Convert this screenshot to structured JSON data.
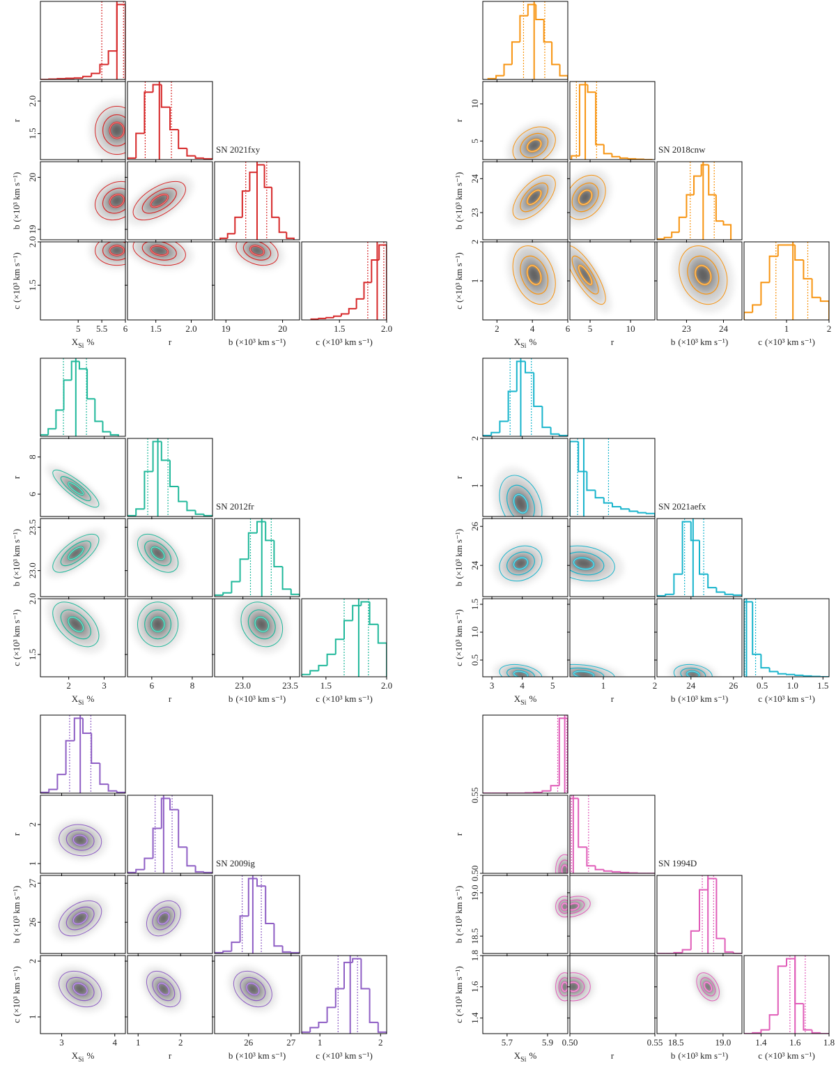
{
  "chart_data": [
    {
      "type": "corner",
      "name": "SN 2021fxy",
      "color": "#d62728",
      "params": [
        {
          "label": "X",
          "sub": "Si",
          "unit": "%",
          "lim": [
            4.2,
            6.0
          ],
          "ticks": [
            5,
            5.5,
            6
          ],
          "quantiles": [
            5.5,
            5.82,
            5.96
          ],
          "bins": [
            4.2,
            4.38,
            4.56,
            4.74,
            4.92,
            5.1,
            5.28,
            5.46,
            5.64,
            5.82,
            6.0
          ],
          "counts": [
            0,
            0.005,
            0.01,
            0.015,
            0.02,
            0.04,
            0.08,
            0.2,
            0.38,
            1
          ]
        },
        {
          "label": "r",
          "lim": [
            1.1,
            2.3
          ],
          "ticks": [
            1.5,
            {
              "value": 2,
              "label": "2.0"
            }
          ],
          "quantiles": [
            1.35,
            1.55,
            1.72
          ],
          "bins": [
            1.1,
            1.22,
            1.34,
            1.46,
            1.58,
            1.7,
            1.82,
            1.94,
            2.06,
            2.18,
            2.3
          ],
          "counts": [
            0.02,
            0.35,
            0.9,
            1,
            0.7,
            0.4,
            0.15,
            0.05,
            0.02,
            0.01
          ]
        },
        {
          "label": "b",
          "unit": "(×10³ km s⁻¹)",
          "lim": [
            18.8,
            20.3
          ],
          "ticks": [
            19,
            20
          ],
          "quantiles": [
            19.35,
            19.55,
            19.72
          ],
          "bins": [
            18.9,
            19.03,
            19.16,
            19.29,
            19.42,
            19.55,
            19.68,
            19.81,
            19.94,
            20.07,
            20.2
          ],
          "counts": [
            0.02,
            0.08,
            0.3,
            0.65,
            0.9,
            1,
            0.7,
            0.3,
            0.1,
            0.02
          ]
        },
        {
          "label": "c",
          "unit": "(×10³ km s⁻¹)",
          "lim": [
            1.1,
            2.0
          ],
          "ticks": [
            1.5,
            {
              "value": 2,
              "label": "2.0"
            }
          ],
          "quantiles": [
            1.8,
            1.9,
            1.97
          ],
          "bins": [
            1.2,
            1.28,
            1.36,
            1.44,
            1.52,
            1.6,
            1.68,
            1.76,
            1.84,
            1.92,
            2.0
          ],
          "counts": [
            0.01,
            0.02,
            0.03,
            0.05,
            0.08,
            0.15,
            0.28,
            0.5,
            0.8,
            1
          ]
        }
      ],
      "corr": [
        0,
        0.2,
        0.6,
        0,
        -0.3,
        -0.3
      ]
    },
    {
      "type": "corner",
      "name": "SN 2018cnw",
      "color": "#f7930f",
      "params": [
        {
          "label": "X",
          "sub": "Si",
          "unit": "%",
          "lim": [
            1.2,
            6.0
          ],
          "ticks": [
            2,
            4,
            6
          ],
          "quantiles": [
            3.5,
            4.1,
            4.7
          ],
          "bins": [
            1.5,
            1.95,
            2.4,
            2.85,
            3.3,
            3.75,
            4.2,
            4.65,
            5.1,
            5.55,
            6.0
          ],
          "counts": [
            0.01,
            0.05,
            0.2,
            0.5,
            0.85,
            1,
            0.8,
            0.5,
            0.2,
            0.05
          ]
        },
        {
          "label": "r",
          "lim": [
            2.5,
            13
          ],
          "ticks": [
            5,
            10
          ],
          "quantiles": [
            3.3,
            4.4,
            5.8
          ],
          "bins": [
            2.7,
            3.7,
            4.7,
            5.7,
            6.7,
            7.7,
            8.7,
            9.7,
            10.7,
            11.7,
            12.7
          ],
          "counts": [
            0.05,
            1,
            0.9,
            0.2,
            0.08,
            0.04,
            0.02,
            0.01,
            0.005,
            0
          ]
        },
        {
          "label": "b",
          "unit": "(×10³ km s⁻¹)",
          "lim": [
            22.2,
            24.5
          ],
          "ticks": [
            23,
            24
          ],
          "quantiles": [
            23.1,
            23.45,
            23.75
          ],
          "bins": [
            22.2,
            22.4,
            22.6,
            22.8,
            23.0,
            23.2,
            23.4,
            23.6,
            23.8,
            24.0,
            24.2
          ],
          "counts": [
            0.01,
            0.03,
            0.1,
            0.3,
            0.6,
            0.85,
            1,
            0.6,
            0.25,
            0.2
          ]
        },
        {
          "label": "c",
          "unit": "(×10³ km s⁻¹)",
          "lim": [
            0,
            2
          ],
          "ticks": [
            1,
            2
          ],
          "quantiles": [
            0.75,
            1.15,
            1.5
          ],
          "bins": [
            0,
            0.2,
            0.4,
            0.6,
            0.8,
            1.0,
            1.2,
            1.4,
            1.6,
            1.8,
            2.0
          ],
          "counts": [
            0.1,
            0.2,
            0.5,
            0.85,
            1,
            1,
            0.8,
            0.55,
            0.3,
            0.25
          ]
        }
      ],
      "corr": [
        0.3,
        0.6,
        0.3,
        -0.3,
        -0.8,
        -0.2
      ]
    },
    {
      "type": "corner",
      "name": "SN 2012fr",
      "color": "#1fb89a",
      "params": [
        {
          "label": "X",
          "sub": "Si",
          "unit": "%",
          "lim": [
            1.2,
            3.6
          ],
          "ticks": [
            2,
            3
          ],
          "quantiles": [
            1.85,
            2.2,
            2.5
          ],
          "bins": [
            1.2,
            1.42,
            1.64,
            1.86,
            2.08,
            2.3,
            2.52,
            2.74,
            2.96,
            3.18,
            3.4
          ],
          "counts": [
            0.02,
            0.1,
            0.35,
            0.75,
            1,
            0.9,
            0.5,
            0.2,
            0.06,
            0.02
          ]
        },
        {
          "label": "r",
          "lim": [
            4.8,
            9
          ],
          "ticks": [
            6,
            8
          ],
          "quantiles": [
            5.8,
            6.3,
            6.8
          ],
          "bins": [
            4.8,
            5.22,
            5.64,
            6.06,
            6.48,
            6.9,
            7.32,
            7.74,
            8.16,
            8.58,
            9.0
          ],
          "counts": [
            0.01,
            0.1,
            0.6,
            1,
            0.75,
            0.4,
            0.2,
            0.08,
            0.03,
            0.01
          ]
        },
        {
          "label": "b",
          "unit": "(×10³ km s⁻¹)",
          "lim": [
            22.7,
            23.6
          ],
          "ticks": [
            {
              "value": 23,
              "label": "23.0"
            },
            23.5
          ],
          "quantiles": [
            23.08,
            23.2,
            23.3
          ],
          "bins": [
            22.7,
            22.79,
            22.88,
            22.97,
            23.06,
            23.15,
            23.24,
            23.33,
            23.42,
            23.51,
            23.6
          ],
          "counts": [
            0.02,
            0.05,
            0.2,
            0.5,
            0.85,
            1,
            0.75,
            0.4,
            0.1,
            0.03
          ]
        },
        {
          "label": "c",
          "unit": "(×10³ km s⁻¹)",
          "lim": [
            1.3,
            2.0
          ],
          "ticks": [
            1.5,
            {
              "value": 2,
              "label": "2.0"
            }
          ],
          "quantiles": [
            1.65,
            1.77,
            1.85
          ],
          "bins": [
            1.3,
            1.37,
            1.44,
            1.51,
            1.58,
            1.65,
            1.72,
            1.79,
            1.86,
            1.93,
            2.0
          ],
          "counts": [
            0.03,
            0.08,
            0.15,
            0.3,
            0.5,
            0.75,
            0.95,
            1,
            0.7,
            0.45
          ]
        }
      ],
      "corr": [
        -0.85,
        0.7,
        -0.5,
        -0.5,
        0,
        -0.2
      ]
    },
    {
      "type": "corner",
      "name": "SN 2021aefx",
      "color": "#17b4cc",
      "params": [
        {
          "label": "X",
          "sub": "Si",
          "unit": "%",
          "lim": [
            2.7,
            5.5
          ],
          "ticks": [
            3,
            4,
            5
          ],
          "quantiles": [
            3.6,
            3.95,
            4.3
          ],
          "bins": [
            2.7,
            2.98,
            3.26,
            3.54,
            3.82,
            4.1,
            4.38,
            4.66,
            4.94,
            5.22,
            5.5
          ],
          "counts": [
            0.01,
            0.05,
            0.2,
            0.6,
            1,
            0.85,
            0.4,
            0.12,
            0.03,
            0.01
          ]
        },
        {
          "label": "r",
          "lim": [
            0.35,
            2.0
          ],
          "ticks": [
            1,
            2
          ],
          "quantiles": [
            0.5,
            0.62,
            1.1
          ],
          "bins": [
            0.35,
            0.515,
            0.68,
            0.845,
            1.01,
            1.175,
            1.34,
            1.505,
            1.67,
            1.835,
            2.0
          ],
          "counts": [
            1,
            0.6,
            0.35,
            0.25,
            0.18,
            0.13,
            0.1,
            0.07,
            0.05,
            0.04
          ]
        },
        {
          "label": "b",
          "unit": "(×10³ km s⁻¹)",
          "lim": [
            22.4,
            26.4
          ],
          "ticks": [
            24,
            26
          ],
          "quantiles": [
            23.7,
            24.1,
            24.6
          ],
          "bins": [
            22.4,
            22.8,
            23.2,
            23.6,
            24.0,
            24.4,
            24.8,
            25.2,
            25.6,
            26.0,
            26.4
          ],
          "counts": [
            0.01,
            0.03,
            0.3,
            1,
            0.75,
            0.3,
            0.12,
            0.06,
            0.03,
            0.02
          ]
        },
        {
          "label": "c",
          "unit": "(×10³ km s⁻¹)",
          "lim": [
            0.2,
            1.6
          ],
          "ticks": [
            0.5,
            {
              "value": 1,
              "label": "1.0"
            },
            1.5
          ],
          "quantiles": [
            0.21,
            0.24,
            0.39
          ],
          "bins": [
            0.2,
            0.34,
            0.48,
            0.62,
            0.76,
            0.9,
            1.04,
            1.18,
            1.32,
            1.46,
            1.6
          ],
          "counts": [
            1,
            0.3,
            0.12,
            0.07,
            0.04,
            0.03,
            0.02,
            0.01,
            0.005,
            0
          ]
        }
      ],
      "corr": [
        -0.3,
        0.2,
        -0.2,
        -0.3,
        -0.3,
        -0.2
      ]
    },
    {
      "type": "corner",
      "name": "SN 2009ig",
      "color": "#8e5ec4",
      "params": [
        {
          "label": "X",
          "sub": "Si",
          "unit": "%",
          "lim": [
            2.6,
            4.2
          ],
          "ticks": [
            3,
            4
          ],
          "quantiles": [
            3.15,
            3.35,
            3.55
          ],
          "bins": [
            2.6,
            2.76,
            2.92,
            3.08,
            3.24,
            3.4,
            3.56,
            3.72,
            3.88,
            4.04,
            4.2
          ],
          "counts": [
            0.01,
            0.05,
            0.25,
            0.7,
            1,
            0.8,
            0.4,
            0.12,
            0.03,
            0.01
          ]
        },
        {
          "label": "r",
          "lim": [
            0.75,
            2.75
          ],
          "ticks": [
            1,
            2
          ],
          "quantiles": [
            1.4,
            1.6,
            1.8
          ],
          "bins": [
            0.75,
            0.95,
            1.15,
            1.35,
            1.55,
            1.75,
            1.95,
            2.15,
            2.35,
            2.55,
            2.75
          ],
          "counts": [
            0.01,
            0.05,
            0.2,
            0.6,
            1,
            0.85,
            0.35,
            0.1,
            0.02,
            0.01
          ]
        },
        {
          "label": "b",
          "unit": "(×10³ km s⁻¹)",
          "lim": [
            25.2,
            27.2
          ],
          "ticks": [
            26,
            27
          ],
          "quantiles": [
            25.85,
            26.1,
            26.3
          ],
          "bins": [
            25.2,
            25.4,
            25.6,
            25.8,
            26.0,
            26.2,
            26.4,
            26.6,
            26.8,
            27.0,
            27.2
          ],
          "counts": [
            0.01,
            0.03,
            0.15,
            0.5,
            1,
            0.9,
            0.4,
            0.1,
            0.02,
            0.01
          ]
        },
        {
          "label": "c",
          "unit": "(×10³ km s⁻¹)",
          "lim": [
            0.7,
            2.1
          ],
          "ticks": [
            1,
            2
          ],
          "quantiles": [
            1.3,
            1.5,
            1.62
          ],
          "bins": [
            0.7,
            0.84,
            0.98,
            1.12,
            1.26,
            1.4,
            1.54,
            1.68,
            1.82,
            1.96,
            2.1
          ],
          "counts": [
            0.02,
            0.08,
            0.15,
            0.35,
            0.6,
            0.95,
            1,
            0.6,
            0.15,
            0.02
          ]
        }
      ],
      "corr": [
        -0.1,
        0.4,
        0.3,
        -0.3,
        -0.4,
        -0.3
      ]
    },
    {
      "type": "corner",
      "name": "SN 1994D",
      "color": "#e05cb8",
      "params": [
        {
          "label": "X",
          "sub": "Si",
          "unit": "%",
          "lim": [
            5.58,
            6.0
          ],
          "ticks": [
            5.7,
            5.9
          ],
          "quantiles": [
            5.95,
            5.985,
            5.995
          ],
          "bins": [
            5.58,
            5.622,
            5.664,
            5.706,
            5.748,
            5.79,
            5.832,
            5.874,
            5.916,
            5.958,
            6.0
          ],
          "counts": [
            0,
            0,
            0,
            0,
            0,
            0.005,
            0.01,
            0.03,
            0.1,
            1
          ]
        },
        {
          "label": "r",
          "lim": [
            0.5,
            0.55
          ],
          "ticks": [
            {
              "value": 0.5,
              "label": "0.50"
            },
            0.55
          ],
          "quantiles": [
            0.501,
            0.502,
            0.511
          ],
          "bins": [
            0.5,
            0.505,
            0.51,
            0.515,
            0.52,
            0.525,
            0.53,
            0.535,
            0.54,
            0.545,
            0.55
          ],
          "counts": [
            1,
            0.35,
            0.1,
            0.05,
            0.03,
            0.02,
            0.01,
            0.005,
            0,
            0
          ]
        },
        {
          "label": "b",
          "unit": "(×10³ km s⁻¹)",
          "lim": [
            18.3,
            19.2
          ],
          "ticks": [
            18.5,
            {
              "value": 19,
              "label": "19.0"
            }
          ],
          "quantiles": [
            18.78,
            18.84,
            18.9
          ],
          "bins": [
            18.3,
            18.39,
            18.48,
            18.57,
            18.66,
            18.75,
            18.84,
            18.93,
            19.02,
            19.11,
            19.2
          ],
          "counts": [
            0,
            0,
            0.01,
            0.05,
            0.3,
            0.85,
            1,
            0.2,
            0.02,
            0
          ]
        },
        {
          "label": "c",
          "unit": "(×10³ km s⁻¹)",
          "lim": [
            1.3,
            1.8
          ],
          "ticks": [
            1.4,
            1.6,
            1.8
          ],
          "quantiles": [
            1.57,
            1.6,
            1.66
          ],
          "bins": [
            1.3,
            1.35,
            1.4,
            1.45,
            1.5,
            1.55,
            1.6,
            1.65,
            1.7,
            1.75,
            1.8
          ],
          "counts": [
            0,
            0.01,
            0.05,
            0.25,
            0.9,
            1,
            0.4,
            0.05,
            0.01,
            0
          ]
        }
      ],
      "corr": [
        0,
        0,
        0.3,
        0,
        0,
        -0.4
      ]
    }
  ]
}
